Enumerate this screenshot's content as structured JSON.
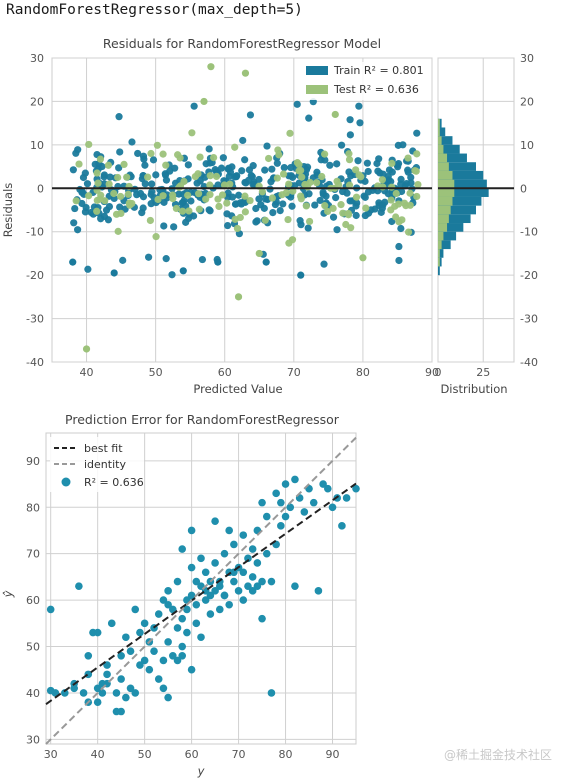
{
  "caption": "RandomForestRegressor(max_depth=5)",
  "watermark": "@稀土掘金技术社区",
  "colors": {
    "train": "#1a7a9c",
    "test": "#9cc27a",
    "predpoint": "#1f8fad",
    "grid": "#d0d0d0",
    "bestfit": "#222222",
    "identity": "#999999"
  },
  "chart_data": [
    {
      "type": "scatter",
      "title": "Residuals for RandomForestRegressor Model",
      "xlabel": "Predicted Value",
      "ylabel": "Residuals",
      "xlim": [
        35,
        90
      ],
      "ylim": [
        -40,
        30
      ],
      "xticks": [
        40,
        50,
        60,
        70,
        80,
        90
      ],
      "yticks": [
        -40,
        -30,
        -20,
        -10,
        0,
        10,
        20,
        30
      ],
      "grid": true,
      "legend": "top-right",
      "legend_entries": [
        "Train R² = 0.801",
        "Test R² = 0.636"
      ],
      "series": [
        {
          "name": "Train R² = 0.801",
          "color": "#1a7a9c",
          "points": "generated approximately 400 points, predicted ~38–88, residuals mostly within ±15"
        },
        {
          "name": "Test R² = 0.636",
          "color": "#9cc27a",
          "points": "approximately 150 points, predicted ~38–88, including outliers near (58, 28), (63, 26), (62, -25), (40, -37)"
        }
      ],
      "hline": 0
    },
    {
      "type": "bar",
      "title": "",
      "xlabel": "Distribution",
      "orientation": "horizontal",
      "xticks": [
        0,
        25
      ],
      "yticks": [
        -40,
        -30,
        -20,
        -10,
        0,
        10,
        20,
        30
      ],
      "ylim": [
        -40,
        30
      ],
      "bins_center": [
        -19,
        -17,
        -15,
        -13,
        -11,
        -9,
        -7,
        -5,
        -3,
        -1,
        1,
        3,
        5,
        7,
        9,
        11,
        13,
        15
      ],
      "series": [
        {
          "name": "Train",
          "values": [
            1,
            2,
            3,
            7,
            10,
            14,
            18,
            21,
            24,
            28,
            27,
            25,
            21,
            16,
            12,
            8,
            4,
            2
          ]
        },
        {
          "name": "Test",
          "values": [
            0,
            1,
            1,
            2,
            3,
            5,
            6,
            7,
            8,
            9,
            9,
            8,
            6,
            5,
            3,
            2,
            1,
            1
          ]
        }
      ]
    },
    {
      "type": "scatter",
      "title": "Prediction Error for RandomForestRegressor",
      "xlabel": "y",
      "ylabel": "ŷ",
      "xlim": [
        29,
        95
      ],
      "ylim": [
        29,
        96
      ],
      "xticks": [
        30,
        40,
        50,
        60,
        70,
        80,
        90
      ],
      "yticks": [
        30,
        40,
        50,
        60,
        70,
        80,
        90
      ],
      "grid": true,
      "legend": "top-left",
      "legend_entries": [
        "best fit",
        "identity",
        "R² = 0.636"
      ],
      "best_fit": {
        "slope": 0.72,
        "intercept": 16.7
      },
      "identity": {
        "slope": 1,
        "intercept": 0
      },
      "points": [
        [
          30,
          58
        ],
        [
          30,
          40.5
        ],
        [
          31,
          40
        ],
        [
          33,
          40
        ],
        [
          35,
          41
        ],
        [
          36,
          63
        ],
        [
          37,
          40
        ],
        [
          38,
          44
        ],
        [
          38,
          48
        ],
        [
          39,
          53
        ],
        [
          40,
          41
        ],
        [
          40,
          53
        ],
        [
          41,
          40
        ],
        [
          42,
          42
        ],
        [
          42,
          46
        ],
        [
          43,
          55
        ],
        [
          44,
          40
        ],
        [
          45,
          48
        ],
        [
          45,
          43
        ],
        [
          46,
          52
        ],
        [
          47,
          41
        ],
        [
          47,
          49
        ],
        [
          48,
          58
        ],
        [
          49,
          46
        ],
        [
          49,
          53
        ],
        [
          50,
          55
        ],
        [
          51,
          45
        ],
        [
          51,
          51
        ],
        [
          52,
          54
        ],
        [
          52,
          49
        ],
        [
          53,
          57
        ],
        [
          53,
          43
        ],
        [
          54,
          47
        ],
        [
          54,
          60
        ],
        [
          55,
          51
        ],
        [
          55,
          62
        ],
        [
          56,
          48
        ],
        [
          56,
          58
        ],
        [
          57,
          54
        ],
        [
          57,
          64
        ],
        [
          58,
          50
        ],
        [
          58,
          56
        ],
        [
          59,
          60
        ],
        [
          59,
          53
        ],
        [
          60,
          61
        ],
        [
          60,
          67
        ],
        [
          61,
          55
        ],
        [
          61,
          59
        ],
        [
          62,
          63
        ],
        [
          62,
          52
        ],
        [
          63,
          66
        ],
        [
          63,
          60
        ],
        [
          64,
          64
        ],
        [
          64,
          57
        ],
        [
          65,
          62
        ],
        [
          65,
          68
        ],
        [
          66,
          58
        ],
        [
          66,
          64
        ],
        [
          67,
          61
        ],
        [
          67,
          70
        ],
        [
          68,
          66
        ],
        [
          68,
          59
        ],
        [
          69,
          64
        ],
        [
          69,
          72
        ],
        [
          70,
          62
        ],
        [
          70,
          67
        ],
        [
          71,
          66
        ],
        [
          71,
          74
        ],
        [
          72,
          63
        ],
        [
          72,
          69
        ],
        [
          73,
          65
        ],
        [
          73,
          71
        ],
        [
          74,
          68
        ],
        [
          74,
          75
        ],
        [
          75,
          64
        ],
        [
          75,
          81
        ],
        [
          76,
          70
        ],
        [
          76,
          78
        ],
        [
          77,
          64
        ],
        [
          77,
          40
        ],
        [
          78,
          83
        ],
        [
          78,
          72
        ],
        [
          79,
          81
        ],
        [
          79,
          76
        ],
        [
          80,
          85
        ],
        [
          80,
          78
        ],
        [
          81,
          80
        ],
        [
          82,
          86
        ],
        [
          82,
          63
        ],
        [
          83,
          82
        ],
        [
          84,
          79
        ],
        [
          85,
          84
        ],
        [
          86,
          81
        ],
        [
          87,
          62
        ],
        [
          88,
          85
        ],
        [
          89,
          84
        ],
        [
          90,
          80
        ],
        [
          91,
          82
        ],
        [
          92,
          76
        ],
        [
          93,
          82
        ],
        [
          95,
          84
        ],
        [
          58,
          71
        ],
        [
          60,
          75
        ],
        [
          62,
          69
        ],
        [
          65,
          77
        ],
        [
          68,
          75
        ],
        [
          55,
          59
        ],
        [
          50,
          47
        ],
        [
          48,
          40
        ],
        [
          45,
          36
        ],
        [
          44,
          36
        ],
        [
          40,
          38
        ],
        [
          38,
          38
        ],
        [
          42,
          44
        ],
        [
          59,
          58
        ],
        [
          61,
          64
        ],
        [
          63,
          62
        ],
        [
          64,
          61
        ],
        [
          66,
          63
        ],
        [
          67,
          61
        ],
        [
          69,
          66
        ],
        [
          71,
          60
        ],
        [
          73,
          62
        ],
        [
          74,
          63
        ],
        [
          75,
          56
        ],
        [
          46,
          39
        ],
        [
          35,
          42
        ],
        [
          41,
          42
        ],
        [
          54,
          41
        ],
        [
          58,
          48
        ],
        [
          60,
          45
        ],
        [
          57,
          47
        ],
        [
          55,
          39
        ]
      ]
    }
  ]
}
